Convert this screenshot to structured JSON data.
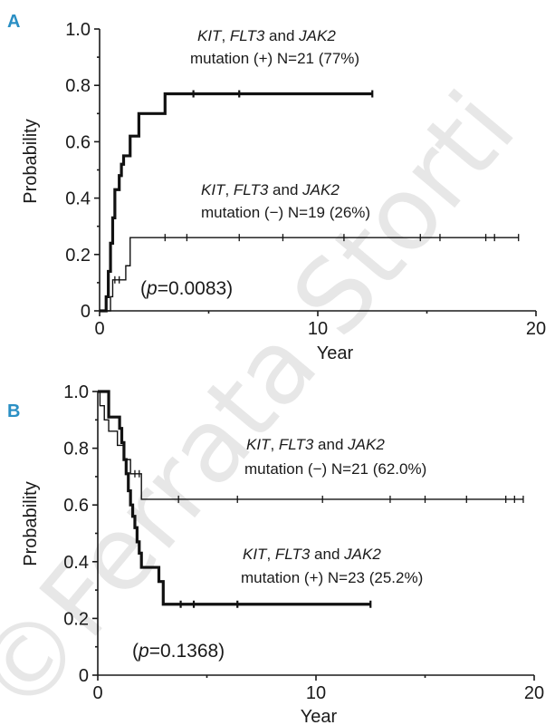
{
  "watermark": "©Ferrata Storti",
  "chart_data": [
    {
      "type": "line",
      "panel": "A",
      "xlabel": "Year",
      "ylabel": "Probability",
      "xlim": [
        0,
        20
      ],
      "ylim": [
        0,
        1.0
      ],
      "x_ticks": [
        0,
        10,
        20
      ],
      "y_ticks": [
        0,
        0.2,
        0.4,
        0.6,
        0.8,
        1.0
      ],
      "y_tick_labels": [
        "0",
        "0.2",
        "0.4",
        "0.6",
        "0.8",
        "1.0"
      ],
      "p_value": {
        "pre": "(",
        "p": "p",
        "post": "=0.0083)"
      },
      "series": [
        {
          "gene1": "KIT",
          "sep1": ", ",
          "gene2": "FLT3",
          "sep2": " and ",
          "gene3": "JAK2",
          "desc": "mutation (+) N=21 (77%)",
          "stroke_weight": "thick",
          "steps": [
            [
              0,
              0
            ],
            [
              0.3,
              0.05
            ],
            [
              0.4,
              0.14
            ],
            [
              0.5,
              0.24
            ],
            [
              0.6,
              0.33
            ],
            [
              0.7,
              0.43
            ],
            [
              0.9,
              0.48
            ],
            [
              1.0,
              0.52
            ],
            [
              1.1,
              0.55
            ],
            [
              1.4,
              0.62
            ],
            [
              1.8,
              0.7
            ],
            [
              3.0,
              0.77
            ],
            [
              12.5,
              0.77
            ]
          ],
          "censor": [
            4.3,
            6.4,
            12.5
          ]
        },
        {
          "gene1": "KIT",
          "sep1": ", ",
          "gene2": "FLT3",
          "sep2": " and ",
          "gene3": "JAK2",
          "desc": "mutation (−) N=19 (26%)",
          "stroke_weight": "thin",
          "steps": [
            [
              0,
              0
            ],
            [
              0.5,
              0.05
            ],
            [
              0.6,
              0.11
            ],
            [
              1.2,
              0.16
            ],
            [
              1.4,
              0.26
            ],
            [
              19.2,
              0.26
            ]
          ],
          "censor": [
            0.7,
            0.9,
            3.0,
            4.0,
            6.4,
            8.4,
            11.2,
            14.7,
            15.6,
            17.7,
            18.1,
            19.2
          ]
        }
      ]
    },
    {
      "type": "line",
      "panel": "B",
      "xlabel": "Year",
      "ylabel": "Probability",
      "xlim": [
        0,
        20
      ],
      "ylim": [
        0,
        1.0
      ],
      "x_ticks": [
        0,
        10,
        20
      ],
      "y_ticks": [
        0,
        0.2,
        0.4,
        0.6,
        0.8,
        1.0
      ],
      "y_tick_labels": [
        "0",
        "0.2",
        "0.4",
        "0.6",
        "0.8",
        "1.0"
      ],
      "p_value": {
        "pre": "(",
        "p": "p",
        "post": "=0.1368)"
      },
      "series": [
        {
          "gene1": "KIT",
          "sep1": ", ",
          "gene2": "FLT3",
          "sep2": " and ",
          "gene3": "JAK2",
          "desc": "mutation (−) N=21 (62.0%)",
          "stroke_weight": "thin",
          "steps": [
            [
              0,
              1.0
            ],
            [
              0.1,
              0.95
            ],
            [
              0.3,
              0.9
            ],
            [
              0.5,
              0.86
            ],
            [
              0.9,
              0.81
            ],
            [
              1.2,
              0.76
            ],
            [
              1.5,
              0.71
            ],
            [
              2.0,
              0.62
            ],
            [
              19.5,
              0.62
            ]
          ],
          "censor": [
            1.7,
            1.9,
            3.7,
            6.4,
            10.3,
            13.4,
            15.0,
            16.9,
            18.7,
            19.1,
            19.5
          ]
        },
        {
          "gene1": "KIT",
          "sep1": ", ",
          "gene2": "FLT3",
          "sep2": " and ",
          "gene3": "JAK2",
          "desc": "mutation (+) N=23 (25.2%)",
          "stroke_weight": "thick",
          "steps": [
            [
              0,
              1.0
            ],
            [
              0.5,
              0.91
            ],
            [
              1.0,
              0.87
            ],
            [
              1.1,
              0.82
            ],
            [
              1.2,
              0.76
            ],
            [
              1.3,
              0.71
            ],
            [
              1.4,
              0.65
            ],
            [
              1.5,
              0.6
            ],
            [
              1.6,
              0.56
            ],
            [
              1.7,
              0.52
            ],
            [
              1.8,
              0.47
            ],
            [
              1.9,
              0.43
            ],
            [
              2.0,
              0.38
            ],
            [
              2.8,
              0.33
            ],
            [
              3.0,
              0.25
            ],
            [
              12.5,
              0.25
            ]
          ],
          "censor": [
            3.8,
            4.4,
            6.4,
            12.5
          ]
        }
      ]
    }
  ]
}
